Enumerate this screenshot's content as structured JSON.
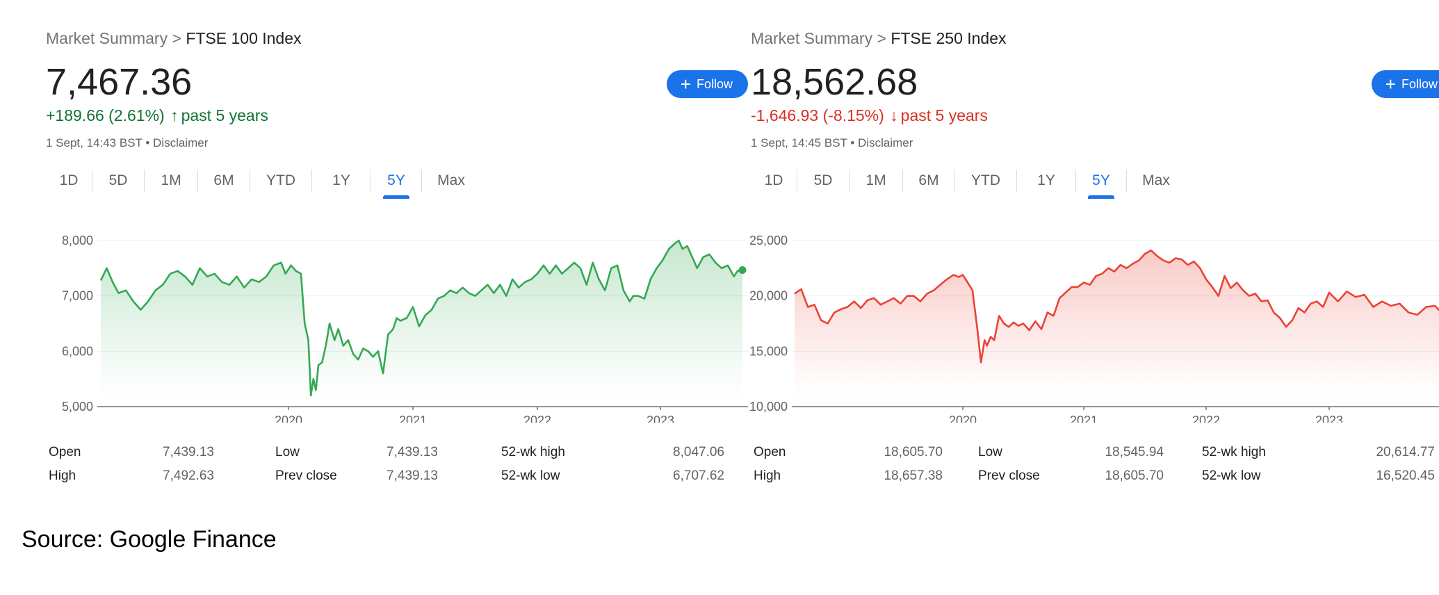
{
  "panels": [
    {
      "breadcrumb": {
        "root": "Market Summary",
        "separator": ">",
        "current": "FTSE 100 Index"
      },
      "price": "7,467.36",
      "change": {
        "text": "+189.66 (2.61%)",
        "direction": "up",
        "arrow": "↑",
        "period": "past 5 years",
        "color": "#137333"
      },
      "timestamp": "1 Sept, 14:43 BST • Disclaimer",
      "follow_label": "Follow",
      "ranges": [
        "1D",
        "5D",
        "1M",
        "6M",
        "YTD",
        "1Y",
        "5Y",
        "Max"
      ],
      "active_range": "5Y",
      "stats": {
        "labels": [
          "Open",
          "High",
          "Low",
          "Prev close",
          "52-wk high",
          "52-wk low"
        ],
        "values": [
          "7,439.13",
          "7,492.63",
          "7,439.13",
          "7,439.13",
          "8,047.06",
          "6,707.62"
        ]
      }
    },
    {
      "breadcrumb": {
        "root": "Market Summary",
        "separator": ">",
        "current": "FTSE 250 Index"
      },
      "price": "18,562.68",
      "change": {
        "text": "-1,646.93 (-8.15%)",
        "direction": "down",
        "arrow": "↓",
        "period": "past 5 years",
        "color": "#d93025"
      },
      "timestamp": "1 Sept, 14:45 BST • Disclaimer",
      "follow_label": "Follow",
      "ranges": [
        "1D",
        "5D",
        "1M",
        "6M",
        "YTD",
        "1Y",
        "5Y",
        "Max"
      ],
      "active_range": "5Y",
      "stats": {
        "labels": [
          "Open",
          "High",
          "Low",
          "Prev close",
          "52-wk high",
          "52-wk low"
        ],
        "values": [
          "18,605.70",
          "18,657.38",
          "18,545.94",
          "18,605.70",
          "20,614.77",
          "16,520.45"
        ]
      }
    }
  ],
  "source": "Source: Google Finance",
  "chart_data": [
    {
      "type": "area",
      "title": "FTSE 100 Index",
      "xlabel": "",
      "ylabel": "",
      "xlim": [
        2018.73,
        2023.67
      ],
      "ylim": [
        5000,
        8000
      ],
      "yticks": [
        "5,000",
        "6,000",
        "7,000",
        "8,000"
      ],
      "ytick_values": [
        5000,
        6000,
        7000,
        8000
      ],
      "xticks": [
        "2020",
        "2021",
        "2022",
        "2023"
      ],
      "xtick_values": [
        2020,
        2021,
        2022,
        2023
      ],
      "grid": true,
      "line_color": "#34a853",
      "series": [
        {
          "x": [
            2018.73,
            2018.77,
            2018.81,
            2018.85,
            2018.9,
            2018.95,
            2019.0,
            2019.05,
            2019.1,
            2019.15,
            2019.2,
            2019.25,
            2019.3,
            2019.35,
            2019.4,
            2019.45,
            2019.5,
            2019.55,
            2019.6,
            2019.65,
            2019.7,
            2019.75,
            2019.8,
            2019.85,
            2019.9,
            2019.95,
            2019.98,
            2020.02,
            2020.06,
            2020.1,
            2020.13,
            2020.16,
            2020.18,
            2020.2,
            2020.22,
            2020.24,
            2020.27,
            2020.3,
            2020.33,
            2020.37,
            2020.4,
            2020.44,
            2020.48,
            2020.52,
            2020.56,
            2020.6,
            2020.64,
            2020.68,
            2020.72,
            2020.76,
            2020.8,
            2020.84,
            2020.87,
            2020.9,
            2020.95,
            2021.0,
            2021.05,
            2021.1,
            2021.15,
            2021.2,
            2021.25,
            2021.3,
            2021.35,
            2021.4,
            2021.45,
            2021.5,
            2021.55,
            2021.6,
            2021.65,
            2021.7,
            2021.75,
            2021.8,
            2021.85,
            2021.9,
            2021.95,
            2022.0,
            2022.05,
            2022.1,
            2022.15,
            2022.2,
            2022.25,
            2022.3,
            2022.35,
            2022.4,
            2022.45,
            2022.5,
            2022.55,
            2022.6,
            2022.65,
            2022.7,
            2022.75,
            2022.78,
            2022.82,
            2022.87,
            2022.92,
            2022.97,
            2023.02,
            2023.07,
            2023.12,
            2023.15,
            2023.18,
            2023.22,
            2023.26,
            2023.3,
            2023.35,
            2023.4,
            2023.45,
            2023.5,
            2023.55,
            2023.6,
            2023.63,
            2023.67
          ],
          "y": [
            7280,
            7500,
            7250,
            7050,
            7100,
            6900,
            6750,
            6900,
            7100,
            7200,
            7400,
            7450,
            7350,
            7200,
            7500,
            7350,
            7400,
            7250,
            7200,
            7350,
            7150,
            7300,
            7250,
            7350,
            7550,
            7600,
            7400,
            7550,
            7450,
            7400,
            6500,
            6200,
            5200,
            5500,
            5300,
            5750,
            5800,
            6100,
            6500,
            6200,
            6400,
            6100,
            6200,
            5950,
            5850,
            6050,
            6000,
            5900,
            6000,
            5600,
            6300,
            6400,
            6600,
            6550,
            6600,
            6800,
            6450,
            6650,
            6750,
            6950,
            7000,
            7100,
            7050,
            7150,
            7050,
            7000,
            7100,
            7200,
            7050,
            7200,
            7000,
            7300,
            7150,
            7250,
            7300,
            7400,
            7550,
            7400,
            7550,
            7400,
            7500,
            7600,
            7500,
            7200,
            7600,
            7300,
            7100,
            7500,
            7550,
            7100,
            6900,
            7000,
            7000,
            6950,
            7300,
            7500,
            7650,
            7850,
            7950,
            8000,
            7850,
            7900,
            7700,
            7500,
            7700,
            7750,
            7600,
            7500,
            7550,
            7350,
            7450,
            7467
          ]
        }
      ]
    },
    {
      "type": "area",
      "title": "FTSE 250 Index",
      "xlabel": "",
      "ylabel": "",
      "xlim": [
        2018.73,
        2023.67
      ],
      "ylim": [
        10000,
        25000
      ],
      "yticks": [
        "10,000",
        "15,000",
        "20,000",
        "25,000"
      ],
      "ytick_values": [
        10000,
        15000,
        20000,
        25000
      ],
      "xticks": [
        "2020",
        "2021",
        "2022",
        "2023"
      ],
      "xtick_values": [
        2020,
        2021,
        2022,
        2023
      ],
      "grid": true,
      "line_color": "#ea4335",
      "series": [
        {
          "x": [
            2018.73,
            2018.78,
            2018.83,
            2018.88,
            2018.93,
            2018.98,
            2019.03,
            2019.08,
            2019.13,
            2019.18,
            2019.23,
            2019.28,
            2019.33,
            2019.38,
            2019.43,
            2019.48,
            2019.53,
            2019.58,
            2019.63,
            2019.68,
            2019.73,
            2019.78,
            2019.83,
            2019.88,
            2019.93,
            2019.97,
            2020.0,
            2020.04,
            2020.08,
            2020.12,
            2020.15,
            2020.18,
            2020.2,
            2020.23,
            2020.26,
            2020.3,
            2020.34,
            2020.38,
            2020.42,
            2020.46,
            2020.5,
            2020.55,
            2020.6,
            2020.65,
            2020.7,
            2020.75,
            2020.8,
            2020.85,
            2020.9,
            2020.95,
            2021.0,
            2021.05,
            2021.1,
            2021.15,
            2021.2,
            2021.25,
            2021.3,
            2021.35,
            2021.4,
            2021.45,
            2021.5,
            2021.55,
            2021.6,
            2021.65,
            2021.7,
            2021.75,
            2021.8,
            2021.85,
            2021.9,
            2021.95,
            2022.0,
            2022.05,
            2022.1,
            2022.15,
            2022.2,
            2022.25,
            2022.3,
            2022.35,
            2022.4,
            2022.45,
            2022.5,
            2022.55,
            2022.6,
            2022.65,
            2022.7,
            2022.75,
            2022.8,
            2022.85,
            2022.9,
            2022.95,
            2023.0,
            2023.05,
            2023.1,
            2023.15,
            2023.2,
            2023.25,
            2023.3,
            2023.35,
            2023.4,
            2023.45,
            2023.5,
            2023.55,
            2023.6,
            2023.63,
            2023.67
          ],
          "y": [
            20200,
            20600,
            19000,
            19200,
            17800,
            17500,
            18500,
            18800,
            19000,
            19500,
            18900,
            19600,
            19800,
            19200,
            19500,
            19800,
            19300,
            20000,
            20000,
            19500,
            20200,
            20500,
            21000,
            21500,
            21900,
            21700,
            21900,
            21200,
            20500,
            17000,
            14000,
            16000,
            15500,
            16300,
            16000,
            18200,
            17500,
            17200,
            17600,
            17300,
            17500,
            16900,
            17700,
            17000,
            18500,
            18200,
            19800,
            20300,
            20800,
            20800,
            21200,
            21000,
            21800,
            22000,
            22500,
            22200,
            22800,
            22500,
            22900,
            23200,
            23800,
            24100,
            23600,
            23200,
            23000,
            23400,
            23300,
            22800,
            23100,
            22500,
            21500,
            20800,
            20000,
            21800,
            20700,
            21200,
            20500,
            20000,
            20200,
            19500,
            19600,
            18500,
            18000,
            17200,
            17800,
            18900,
            18500,
            19300,
            19500,
            19000,
            20300,
            19500,
            20400,
            19900,
            20100,
            19000,
            19500,
            19100,
            19300,
            18500,
            18300,
            19000,
            19100,
            18600,
            18563
          ]
        }
      ]
    }
  ]
}
